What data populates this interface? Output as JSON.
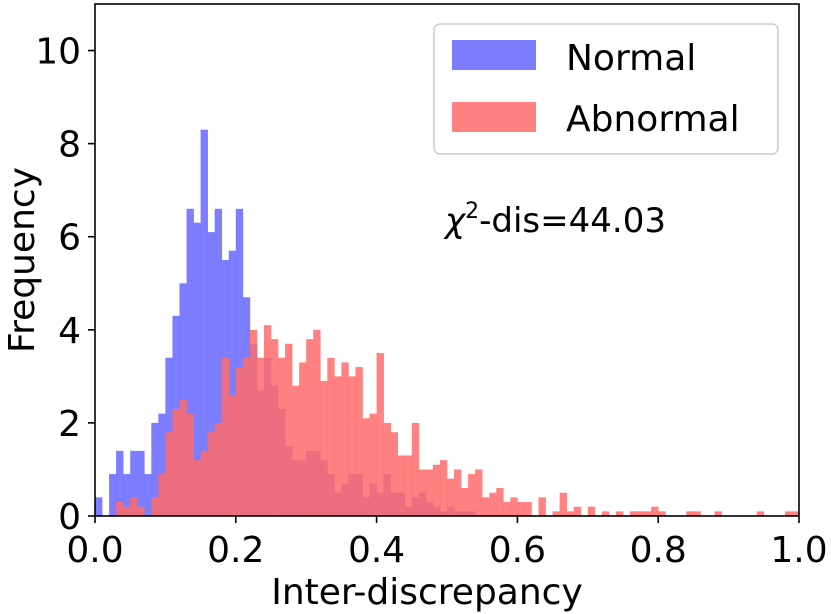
{
  "chart_data": {
    "type": "histogram",
    "xlabel": "Inter-discrepancy",
    "ylabel": "Frequency",
    "xlim": [
      0.0,
      1.0
    ],
    "ylim": [
      0,
      11
    ],
    "xticks": [
      "0.0",
      "0.2",
      "0.4",
      "0.6",
      "0.8",
      "1.0"
    ],
    "yticks": [
      "0",
      "2",
      "4",
      "6",
      "8",
      "10"
    ],
    "annotation": {
      "base": "χ",
      "sup": "2",
      "rest": "-dis=44.03"
    },
    "legend_position": "top-right",
    "bin_width": 0.01,
    "series": [
      {
        "name": "Normal",
        "color": "#6666ff",
        "values": [
          0.4,
          0,
          0.9,
          1.4,
          0.9,
          1.4,
          1.4,
          0.9,
          2.0,
          2.2,
          3.4,
          4.3,
          5.0,
          6.6,
          6.3,
          8.3,
          6.1,
          6.6,
          5.5,
          5.7,
          6.6,
          4.7,
          3.7,
          2.7,
          3.4,
          2.8,
          2.3,
          1.5,
          1.2,
          1.2,
          1.4,
          1.4,
          1.2,
          0.9,
          0.5,
          0.7,
          0.9,
          0.9,
          0.4,
          0.7,
          0.5,
          0.9,
          0.5,
          0.5,
          0.2,
          0.4,
          0.5,
          0.3,
          0.2,
          0.1,
          0.2,
          0.1,
          0.1,
          0.1,
          0,
          0,
          0,
          0,
          0,
          0,
          0,
          0,
          0,
          0,
          0,
          0,
          0,
          0,
          0,
          0,
          0,
          0,
          0,
          0,
          0,
          0,
          0,
          0,
          0,
          0,
          0,
          0,
          0,
          0,
          0,
          0,
          0,
          0,
          0,
          0,
          0,
          0,
          0,
          0,
          0,
          0,
          0,
          0,
          0,
          0
        ]
      },
      {
        "name": "Abnormal",
        "color": "#ff6b6b",
        "values": [
          0,
          0,
          0,
          0.3,
          0.2,
          0.4,
          0.2,
          0,
          0.4,
          0.9,
          1.8,
          2.3,
          2.5,
          2.2,
          1.2,
          1.4,
          1.8,
          2.0,
          3.4,
          2.6,
          3.2,
          3.4,
          4.0,
          3.4,
          4.1,
          3.8,
          3.4,
          3.7,
          2.8,
          3.3,
          3.8,
          4.0,
          2.9,
          3.4,
          3.0,
          3.3,
          3.0,
          3.2,
          2.1,
          2.2,
          3.5,
          2.0,
          1.8,
          1.3,
          1.3,
          2.0,
          1.0,
          1.0,
          1.1,
          1.2,
          0.8,
          1.0,
          0.6,
          0.9,
          1.0,
          0.4,
          0.5,
          0.6,
          0.3,
          0.4,
          0.3,
          0.3,
          0,
          0.4,
          0,
          0.1,
          0.5,
          0.1,
          0.2,
          0,
          0.2,
          0,
          0.1,
          0,
          0.1,
          0,
          0.1,
          0.1,
          0.1,
          0.2,
          0.1,
          0,
          0,
          0,
          0.1,
          0.1,
          0,
          0,
          0.1,
          0,
          0,
          0,
          0,
          0,
          0.1,
          0,
          0,
          0,
          0.1,
          0.1
        ]
      }
    ]
  }
}
